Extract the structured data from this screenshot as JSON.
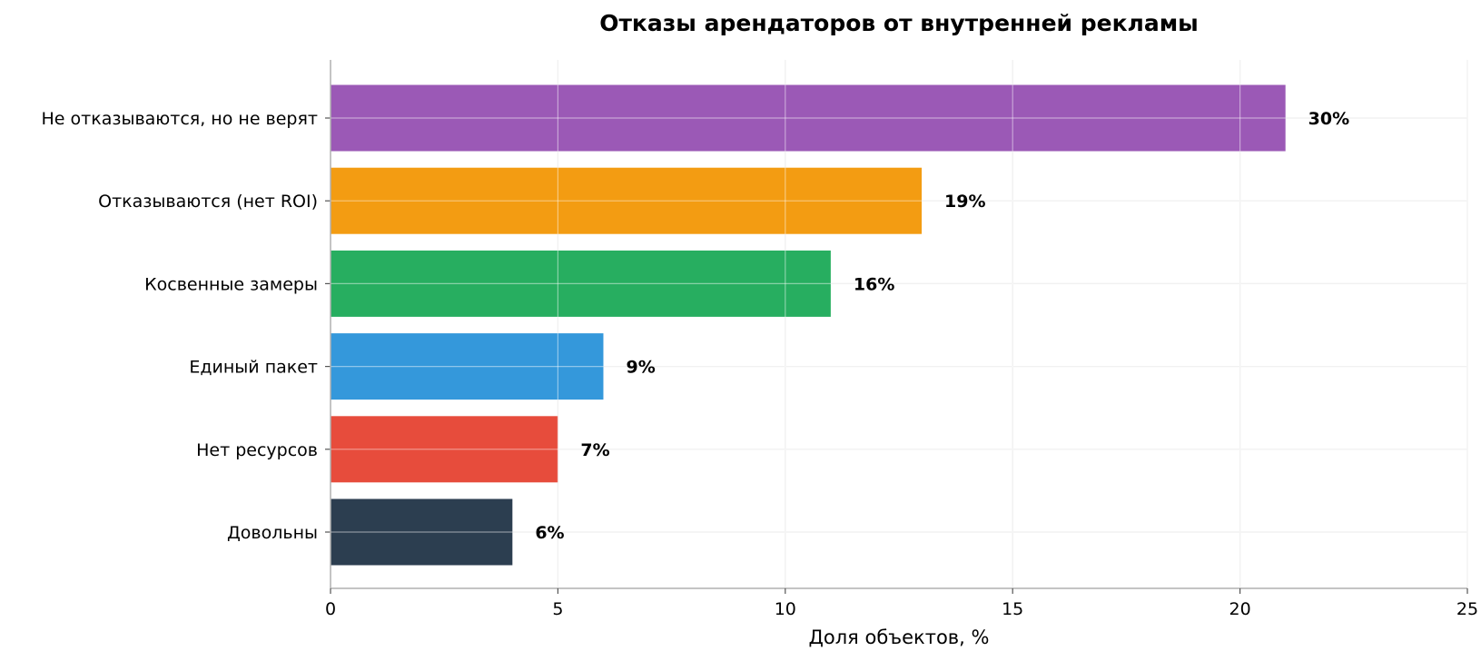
{
  "chart_data": {
    "type": "bar",
    "orientation": "horizontal",
    "title": "Отказы арендаторов от внутренней рекламы",
    "xlabel": "Доля объектов, %",
    "ylabel": "",
    "xlim": [
      0,
      25
    ],
    "xticks": [
      0,
      5,
      10,
      15,
      20,
      25
    ],
    "grid": true,
    "categories": [
      "Не отказываются, но не верят",
      "Отказываются (нет ROI)",
      "Косвенные замеры",
      "Единый пакет",
      "Нет ресурсов",
      "Довольны"
    ],
    "values": [
      21,
      13,
      11,
      6,
      5,
      4
    ],
    "data_labels": [
      "30%",
      "19%",
      "16%",
      "9%",
      "7%",
      "6%"
    ],
    "colors": [
      "#9b59b6",
      "#f39c12",
      "#27ae60",
      "#3498db",
      "#e74c3c",
      "#2c3e50"
    ]
  }
}
